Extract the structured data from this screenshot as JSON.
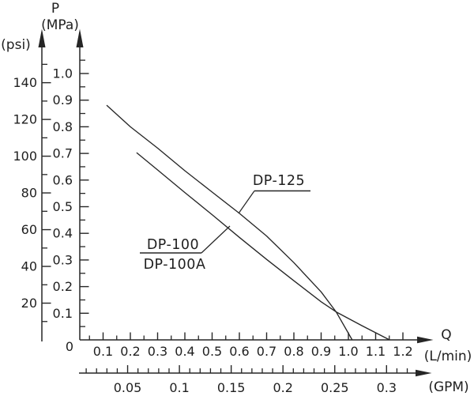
{
  "figure": {
    "origin_label": "0"
  },
  "colors": {
    "line": "#262626",
    "text": "#1f1f1f",
    "background": "#ffffff"
  },
  "chart_data": {
    "type": "line",
    "title": "P",
    "grid": false,
    "legend": "inline-leader-labels",
    "y_axis_mpa": {
      "title": "P",
      "unit": "(MPa)",
      "major_tick_labels": [
        "0.1",
        "0.2",
        "0.3",
        "0.4",
        "0.5",
        "0.6",
        "0.7",
        "0.8",
        "0.9",
        "1.0"
      ],
      "minor_ticks": [
        0.05,
        0.15,
        0.25,
        0.35,
        0.45,
        0.55,
        0.65,
        0.75,
        0.85,
        0.95,
        1.05
      ],
      "range": [
        0,
        1.05
      ]
    },
    "y_axis_psi": {
      "unit": "(psi)",
      "major_tick_labels": [
        "20",
        "40",
        "60",
        "80",
        "100",
        "120",
        "140"
      ],
      "minor_ticks": [
        10,
        30,
        50,
        70,
        90,
        110,
        130,
        150
      ],
      "range": [
        0,
        150
      ]
    },
    "x_axis_lmin": {
      "title": "Q",
      "unit": "(L/min)",
      "major_tick_labels": [
        "0.1",
        "0.2",
        "0.3",
        "0.4",
        "0.5",
        "0.6",
        "0.7",
        "0.8",
        "0.9",
        "1.0",
        "1.1",
        "1.2"
      ],
      "minor_ticks": [
        0.05,
        0.15,
        0.25,
        0.35,
        0.45,
        0.55,
        0.65,
        0.75,
        0.85,
        0.95,
        1.05,
        1.15
      ],
      "range": [
        0,
        1.25
      ]
    },
    "x_axis_gpm": {
      "unit": "(GPM)",
      "major_tick_labels": [
        "0.05",
        "0.1",
        "0.15",
        "0.2",
        "0.25",
        "0.3"
      ],
      "minor_ticks": [
        0.01,
        0.02,
        0.03,
        0.04,
        0.06,
        0.07,
        0.08,
        0.09,
        0.11,
        0.12,
        0.13,
        0.14,
        0.16,
        0.17,
        0.18,
        0.19,
        0.21,
        0.22,
        0.23,
        0.24,
        0.26,
        0.27,
        0.28,
        0.29,
        0.31,
        0.32
      ],
      "range": [
        0,
        0.33
      ]
    },
    "origin_label": "0",
    "series": [
      {
        "name": "DP-125",
        "points": [
          [
            0.113,
            0.881
          ],
          [
            0.2,
            0.8
          ],
          [
            0.3,
            0.72
          ],
          [
            0.4,
            0.635
          ],
          [
            0.5,
            0.555
          ],
          [
            0.6,
            0.475
          ],
          [
            0.7,
            0.39
          ],
          [
            0.8,
            0.29
          ],
          [
            0.9,
            0.18
          ],
          [
            0.955,
            0.105
          ],
          [
            1.014,
            0.0
          ]
        ]
      },
      {
        "name": "DP-100 / DP-100A",
        "points": [
          [
            0.223,
            0.703
          ],
          [
            0.3,
            0.638
          ],
          [
            0.4,
            0.553
          ],
          [
            0.5,
            0.47
          ],
          [
            0.6,
            0.385
          ],
          [
            0.7,
            0.302
          ],
          [
            0.8,
            0.222
          ],
          [
            0.9,
            0.143
          ],
          [
            0.955,
            0.105
          ],
          [
            1.05,
            0.053
          ],
          [
            1.151,
            0.0
          ]
        ]
      }
    ],
    "annotations": [
      {
        "text": "DP-125",
        "target_series": "DP-125"
      },
      {
        "text_top": "DP-100",
        "text_bottom": "DP-100A",
        "target_series": "DP-100 / DP-100A"
      }
    ],
    "crossing_point": [
      0.955,
      0.105
    ]
  }
}
